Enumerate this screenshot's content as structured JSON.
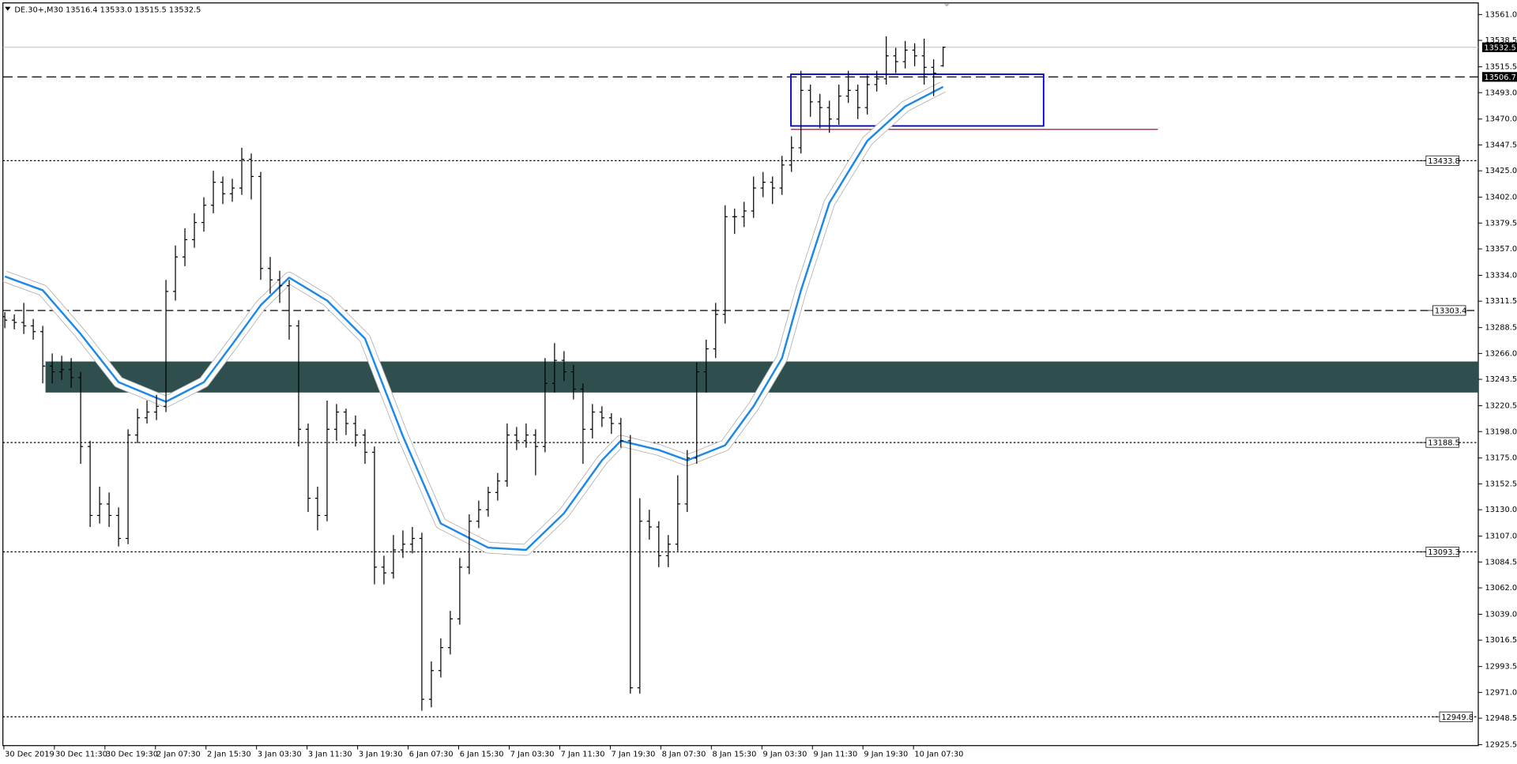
{
  "chart_data": {
    "type": "ohlc",
    "title": "DE.30+,M30  13516.4 13533.0 13515.5 13532.5",
    "categories": [
      "30 Dec 2019",
      "30 Dec 11:30",
      "30 Dec 19:30",
      "2 Jan 07:30",
      "2 Jan 15:30",
      "3 Jan 03:30",
      "3 Jan 11:30",
      "3 Jan 19:30",
      "6 Jan 07:30",
      "6 Jan 15:30",
      "7 Jan 03:30",
      "7 Jan 11:30",
      "7 Jan 19:30",
      "8 Jan 07:30",
      "8 Jan 15:30",
      "9 Jan 03:30",
      "9 Jan 11:30",
      "9 Jan 19:30",
      "10 Jan 07:30"
    ],
    "color": "#000000",
    "ohlc": [
      [
        13298,
        13302,
        13288,
        13295
      ],
      [
        13295,
        13300,
        13287,
        13293
      ],
      [
        13293,
        13310,
        13283,
        13290
      ],
      [
        13290,
        13296,
        13278,
        13285
      ],
      [
        13285,
        13290,
        13240,
        13255
      ],
      [
        13255,
        13266,
        13240,
        13250
      ],
      [
        13250,
        13264,
        13243,
        13252
      ],
      [
        13252,
        13262,
        13236,
        13245
      ],
      [
        13245,
        13250,
        13170,
        13185
      ],
      [
        13185,
        13190,
        13115,
        13125
      ],
      [
        13125,
        13150,
        13118,
        13135
      ],
      [
        13135,
        13145,
        13115,
        13125
      ],
      [
        13125,
        13132,
        13098,
        13105
      ],
      [
        13105,
        13200,
        13100,
        13195
      ],
      [
        13195,
        13218,
        13188,
        13210
      ],
      [
        13210,
        13225,
        13205,
        13215
      ],
      [
        13215,
        13230,
        13208,
        13220
      ],
      [
        13220,
        13330,
        13215,
        13320
      ],
      [
        13320,
        13360,
        13312,
        13350
      ],
      [
        13350,
        13375,
        13342,
        13365
      ],
      [
        13365,
        13388,
        13358,
        13380
      ],
      [
        13380,
        13402,
        13372,
        13395
      ],
      [
        13395,
        13425,
        13388,
        13415
      ],
      [
        13415,
        13420,
        13396,
        13405
      ],
      [
        13405,
        13418,
        13398,
        13410
      ],
      [
        13410,
        13445,
        13404,
        13435
      ],
      [
        13435,
        13440,
        13400,
        13420
      ],
      [
        13420,
        13424,
        13330,
        13340
      ],
      [
        13340,
        13350,
        13318,
        13330
      ],
      [
        13330,
        13338,
        13310,
        13325
      ],
      [
        13325,
        13330,
        13278,
        13290
      ],
      [
        13290,
        13295,
        13185,
        13200
      ],
      [
        13200,
        13205,
        13128,
        13140
      ],
      [
        13140,
        13150,
        13112,
        13125
      ],
      [
        13125,
        13225,
        13120,
        13200
      ],
      [
        13200,
        13222,
        13190,
        13215
      ],
      [
        13215,
        13218,
        13195,
        13205
      ],
      [
        13205,
        13212,
        13185,
        13195
      ],
      [
        13195,
        13200,
        13170,
        13180
      ],
      [
        13180,
        13185,
        13065,
        13080
      ],
      [
        13080,
        13090,
        13065,
        13075
      ],
      [
        13075,
        13108,
        13070,
        13095
      ],
      [
        13095,
        13112,
        13088,
        13100
      ],
      [
        13100,
        13115,
        13092,
        13105
      ],
      [
        13105,
        13110,
        12955,
        12965
      ],
      [
        12965,
        12998,
        12958,
        12990
      ],
      [
        12990,
        13018,
        12984,
        13010
      ],
      [
        13010,
        13042,
        13004,
        13035
      ],
      [
        13035,
        13088,
        13030,
        13080
      ],
      [
        13080,
        13126,
        13074,
        13120
      ],
      [
        13120,
        13138,
        13114,
        13130
      ],
      [
        13130,
        13150,
        13124,
        13145
      ],
      [
        13145,
        13162,
        13138,
        13155
      ],
      [
        13155,
        13205,
        13150,
        13195
      ],
      [
        13195,
        13202,
        13182,
        13190
      ],
      [
        13190,
        13205,
        13184,
        13195
      ],
      [
        13195,
        13200,
        13160,
        13185
      ],
      [
        13185,
        13262,
        13180,
        13240
      ],
      [
        13240,
        13275,
        13232,
        13260
      ],
      [
        13260,
        13268,
        13242,
        13250
      ],
      [
        13250,
        13256,
        13226,
        13235
      ],
      [
        13235,
        13240,
        13170,
        13200
      ],
      [
        13200,
        13222,
        13192,
        13215
      ],
      [
        13215,
        13220,
        13202,
        13210
      ],
      [
        13210,
        13214,
        13196,
        13205
      ],
      [
        13205,
        13210,
        13184,
        13190
      ],
      [
        13190,
        13195,
        12970,
        12975
      ],
      [
        12975,
        13140,
        12970,
        13120
      ],
      [
        13120,
        13130,
        13104,
        13115
      ],
      [
        13115,
        13120,
        13080,
        13090
      ],
      [
        13090,
        13108,
        13080,
        13100
      ],
      [
        13100,
        13160,
        13094,
        13135
      ],
      [
        13135,
        13182,
        13128,
        13175
      ],
      [
        13175,
        13258,
        13170,
        13250
      ],
      [
        13250,
        13278,
        13232,
        13270
      ],
      [
        13270,
        13310,
        13262,
        13300
      ],
      [
        13300,
        13395,
        13292,
        13385
      ],
      [
        13385,
        13392,
        13370,
        13385
      ],
      [
        13385,
        13398,
        13376,
        13390
      ],
      [
        13390,
        13420,
        13384,
        13410
      ],
      [
        13410,
        13424,
        13402,
        13415
      ],
      [
        13415,
        13420,
        13396,
        13410
      ],
      [
        13410,
        13438,
        13404,
        13430
      ],
      [
        13430,
        13455,
        13424,
        13445
      ],
      [
        13445,
        13512,
        13440,
        13495
      ],
      [
        13495,
        13500,
        13472,
        13485
      ],
      [
        13485,
        13492,
        13462,
        13480
      ],
      [
        13480,
        13486,
        13458,
        13470
      ],
      [
        13470,
        13500,
        13465,
        13490
      ],
      [
        13490,
        13512,
        13484,
        13495
      ],
      [
        13495,
        13500,
        13470,
        13480
      ],
      [
        13480,
        13508,
        13474,
        13500
      ],
      [
        13500,
        13512,
        13494,
        13505
      ],
      [
        13505,
        13542,
        13500,
        13525
      ],
      [
        13525,
        13532,
        13510,
        13520
      ],
      [
        13520,
        13538,
        13514,
        13530
      ],
      [
        13530,
        13536,
        13516,
        13525
      ],
      [
        13525,
        13540,
        13500,
        13515
      ],
      [
        13515,
        13522,
        13490,
        13510
      ],
      [
        13516.4,
        13533.0,
        13515.5,
        13532.5
      ]
    ],
    "moving_average": {
      "color": "#1e88e5",
      "x": [
        0,
        4,
        8,
        12,
        17,
        21,
        24,
        27,
        30,
        34,
        38,
        42,
        46,
        51,
        55,
        59,
        63,
        65,
        69,
        72,
        76,
        79,
        82,
        84,
        87,
        91,
        95,
        99
      ],
      "values": [
        13333,
        13321,
        13283,
        13241,
        13224,
        13241,
        13274,
        13308,
        13332,
        13312,
        13279,
        13194,
        13118,
        13097,
        13095,
        13127,
        13173,
        13190,
        13182,
        13173,
        13186,
        13220,
        13262,
        13321,
        13397,
        13451,
        13481,
        13498
      ]
    },
    "ylim": [
      12924.7,
      13571.1
    ],
    "yticks": [
      {
        "value": 13561.0,
        "label": "13561.0"
      },
      13538.5,
      13515.5,
      {
        "value": 13493.0,
        "label": "13493.0"
      },
      {
        "value": 13470.0,
        "label": "13470.0"
      },
      13447.5,
      {
        "value": 13425.0,
        "label": "13425.0"
      },
      {
        "value": 13402.0,
        "label": "13402.0"
      },
      13379.5,
      {
        "value": 13357.0,
        "label": "13357.0"
      },
      {
        "value": 13334.0,
        "label": "13334.0"
      },
      13311.5,
      13288.5,
      {
        "value": 13266.0,
        "label": "13266.0"
      },
      13243.5,
      13220.5,
      {
        "value": 13198.0,
        "label": "13198.0"
      },
      {
        "value": 13175.0,
        "label": "13175.0"
      },
      13152.5,
      {
        "value": 13130.0,
        "label": "13130.0"
      },
      {
        "value": 13107.0,
        "label": "13107.0"
      },
      13084.5,
      {
        "value": 13062.0,
        "label": "13062.0"
      },
      {
        "value": 13039.0,
        "label": "13039.0"
      },
      13016.5,
      12993.5,
      {
        "value": 12971.0,
        "label": "12971.0"
      },
      12948.5,
      12925.5
    ],
    "levels": [
      13433.8,
      13303.4,
      13188.5,
      13093.3,
      12949.8
    ],
    "current_price": 13532.5,
    "resistance_line": 13506.7,
    "zone": {
      "color": "#2f4f4f",
      "range": [
        13232,
        13259
      ]
    },
    "box": {
      "color": "#0000cc",
      "range": [
        13464,
        13509
      ]
    },
    "support_line": {
      "color": "#cc0033",
      "value": 13461
    }
  }
}
